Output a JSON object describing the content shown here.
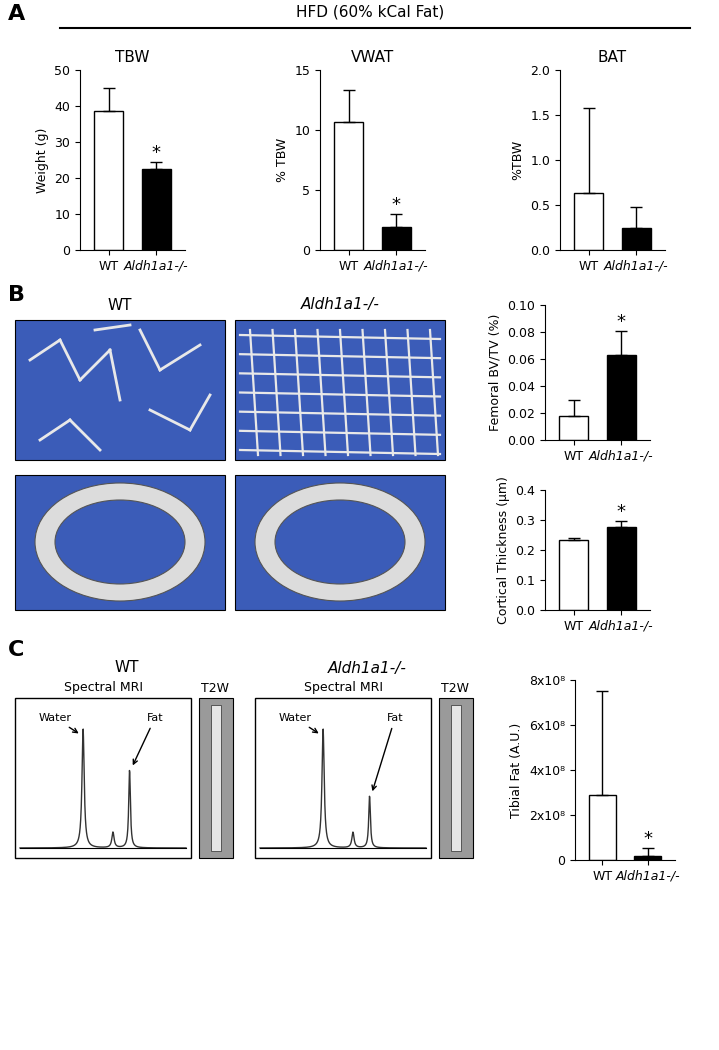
{
  "header": "HFD (60% kCal Fat)",
  "panel_labels": [
    "A",
    "B",
    "C"
  ],
  "microct": {
    "columns": [
      "WT",
      "Aldh1a1-/-"
    ]
  },
  "mri": [
    {
      "title": "WT",
      "spectrum": "Spectral MRI",
      "image": "T2W",
      "peaks": [
        "Water",
        "Fat"
      ]
    },
    {
      "title": "Aldh1a1-/-",
      "spectrum": "Spectral MRI",
      "image": "T2W",
      "peaks": [
        "Water",
        "Fat"
      ]
    }
  ],
  "chart_data": [
    {
      "type": "bar",
      "title": "TBW",
      "ylabel": "Weight (g)",
      "categories": [
        "WT",
        "Aldh1a1-/-"
      ],
      "values": [
        38.5,
        22.5
      ],
      "errors": [
        6.5,
        2.0
      ],
      "colors": [
        "#ffffff",
        "#000000"
      ],
      "ylim": [
        0,
        50
      ],
      "yticks": [
        0,
        10,
        20,
        30,
        40,
        50
      ],
      "annotations": [
        {
          "category": "Aldh1a1-/-",
          "text": "*"
        }
      ]
    },
    {
      "type": "bar",
      "title": "VWAT",
      "ylabel": "% TBW",
      "categories": [
        "WT",
        "Aldh1a1-/-"
      ],
      "values": [
        10.7,
        1.9
      ],
      "errors": [
        2.6,
        1.1
      ],
      "colors": [
        "#ffffff",
        "#000000"
      ],
      "ylim": [
        0,
        15
      ],
      "yticks": [
        0,
        5,
        10,
        15
      ],
      "annotations": [
        {
          "category": "Aldh1a1-/-",
          "text": "*"
        }
      ]
    },
    {
      "type": "bar",
      "title": "BAT",
      "ylabel": "%TBW",
      "categories": [
        "WT",
        "Aldh1a1-/-"
      ],
      "values": [
        0.63,
        0.25
      ],
      "errors": [
        0.95,
        0.23
      ],
      "colors": [
        "#ffffff",
        "#000000"
      ],
      "ylim": [
        0.0,
        2.0
      ],
      "yticks": [
        0.0,
        0.5,
        1.0,
        1.5,
        2.0
      ]
    },
    {
      "type": "bar",
      "ylabel": "Femoral BV/TV (%)",
      "categories": [
        "WT",
        "Aldh1a1-/-"
      ],
      "values": [
        0.018,
        0.063
      ],
      "errors": [
        0.012,
        0.018
      ],
      "colors": [
        "#ffffff",
        "#000000"
      ],
      "ylim": [
        0.0,
        0.1
      ],
      "yticks": [
        {
          "value": 0.0,
          "label": "0.00"
        },
        {
          "value": 0.02,
          "label": "0.02"
        },
        {
          "value": 0.04,
          "label": "0.04"
        },
        {
          "value": 0.06,
          "label": "0.06"
        },
        {
          "value": 0.08,
          "label": "0.08"
        },
        {
          "value": 0.1,
          "label": "0.10"
        }
      ],
      "annotations": [
        {
          "category": "Aldh1a1-/-",
          "text": "*"
        }
      ]
    },
    {
      "type": "bar",
      "ylabel": "Cortical Thickness (µm)",
      "categories": [
        "WT",
        "Aldh1a1-/-"
      ],
      "values": [
        0.232,
        0.278
      ],
      "errors": [
        0.007,
        0.02
      ],
      "colors": [
        "#ffffff",
        "#000000"
      ],
      "ylim": [
        0.0,
        0.4
      ],
      "yticks": [
        0.0,
        0.1,
        0.2,
        0.3,
        0.4
      ],
      "annotations": [
        {
          "category": "Aldh1a1-/-",
          "text": "*"
        }
      ]
    },
    {
      "type": "bar",
      "ylabel": "Tibial Fat (A.U.)",
      "categories": [
        "WT",
        "Aldh1a1-/-"
      ],
      "values": [
        290000000,
        18000000
      ],
      "errors": [
        460000000,
        35000000
      ],
      "colors": [
        "#ffffff",
        "#000000"
      ],
      "ylim": [
        0,
        800000000
      ],
      "yticks": [
        0,
        {
          "value": 200000000,
          "label": "2x10⁸"
        },
        {
          "value": 400000000,
          "label": "4x10⁸"
        },
        {
          "value": 600000000,
          "label": "6x10⁸"
        },
        {
          "value": 800000000,
          "label": "8x10⁸"
        }
      ],
      "annotations": [
        {
          "category": "Aldh1a1-/-",
          "text": "*"
        }
      ]
    }
  ]
}
